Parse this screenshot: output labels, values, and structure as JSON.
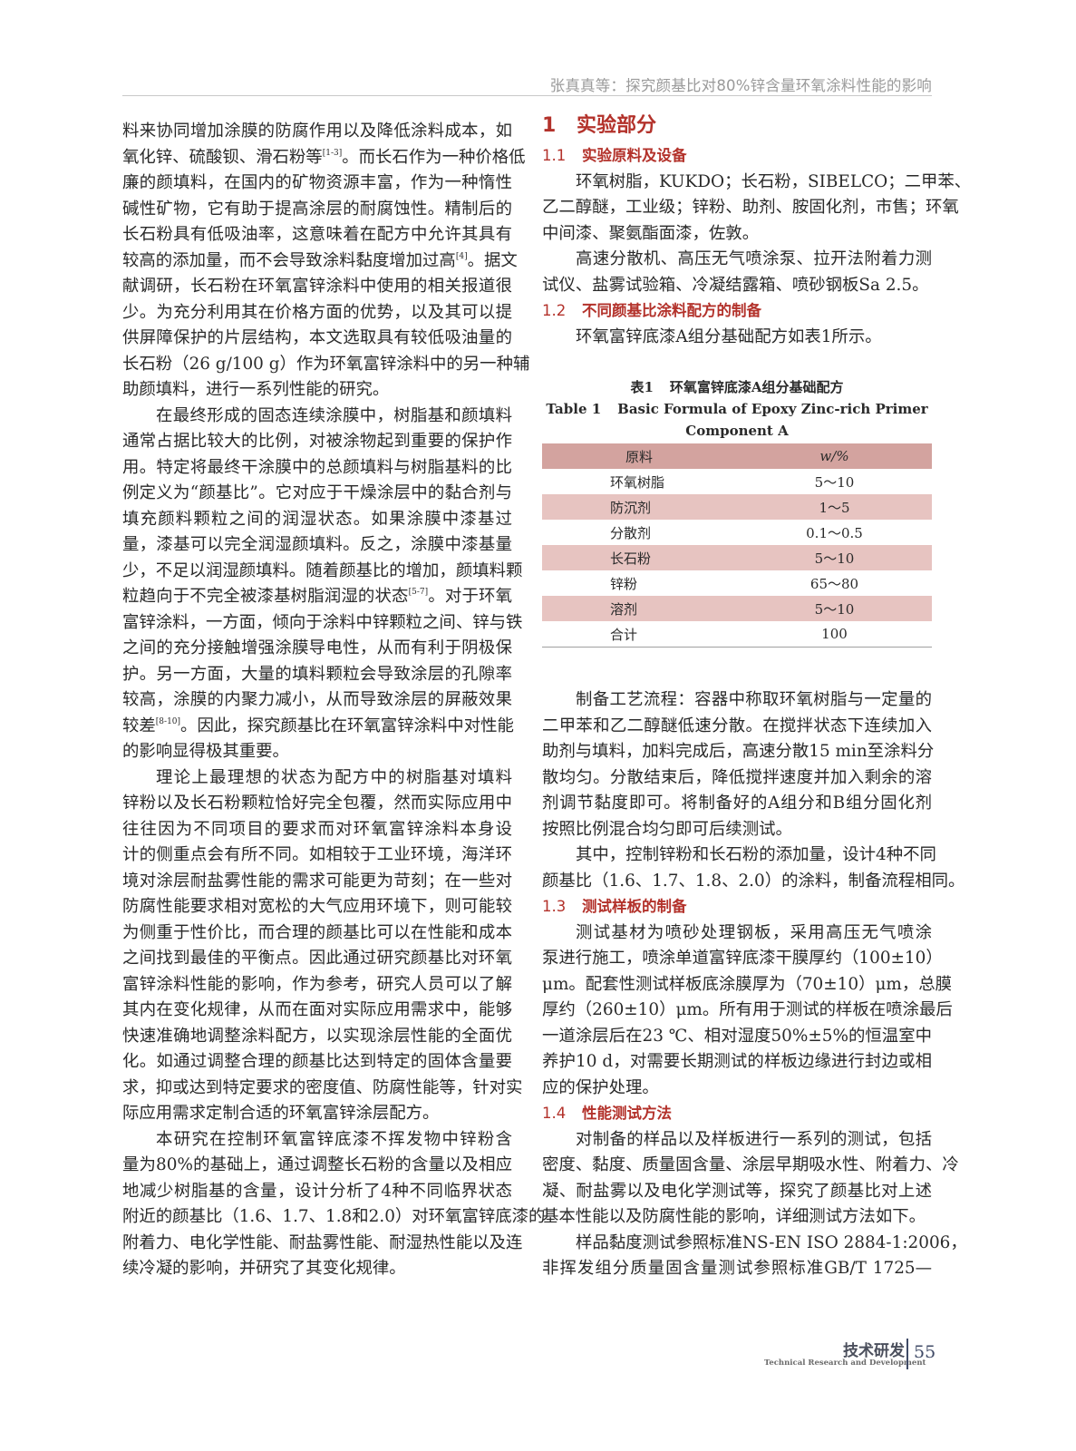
{
  "running_head": "张真真等：探究颜基比对80%锌含量环氧涂料性能的影响",
  "left_column": {
    "paragraphs": [
      {
        "indent": false,
        "lines": [
          [
            "料来协同增加涂膜的防腐作用以及降低涂料成本，如"
          ],
          [
            "氧化锌、硫酸钡、滑石粉等",
            {
              "sup": "[1-3]"
            },
            "。而长石作为一种价格低"
          ],
          [
            "廉的颜填料，在国内的矿物资源丰富，作为一种惰性"
          ],
          [
            "碱性矿物，它有助于提高涂层的耐腐蚀性。精制后的"
          ],
          [
            "长石粉具有低吸油率，这意味着在配方中允许其具有"
          ],
          [
            "较高的添加量，而不会导致涂料黏度增加过高",
            {
              "sup": "[4]"
            },
            "。据文"
          ],
          [
            "献调研，长石粉在环氧富锌涂料中使用的相关报道很"
          ],
          [
            "少。为充分利用其在价格方面的优势，以及其可以提"
          ],
          [
            "供屏障保护的片层结构，本文选取具有较低吸油量的"
          ],
          [
            "长石粉（26 g/100 g）作为环氧富锌涂料中的另一种辅"
          ],
          [
            "助颜填料，进行一系列性能的研究。"
          ]
        ]
      },
      {
        "indent": true,
        "lines": [
          [
            "在最终形成的固态连续涂膜中，树脂基和颜填料"
          ],
          [
            "通常占据比较大的比例，对被涂物起到重要的保护作"
          ],
          [
            "用。特定将最终干涂膜中的总颜填料与树脂基料的比"
          ],
          [
            "例定义为“颜基比”。它对应于干燥涂层中的黏合剂与"
          ],
          [
            "填充颜料颗粒之间的润湿状态。如果涂膜中漆基过"
          ],
          [
            "量，漆基可以完全润湿颜填料。反之，涂膜中漆基量"
          ],
          [
            "少，不足以润湿颜填料。随着颜基比的增加，颜填料颗"
          ],
          [
            "粒趋向于不完全被漆基树脂润湿的状态",
            {
              "sup": "[5-7]"
            },
            "。对于环氧"
          ],
          [
            "富锌涂料，一方面，倾向于涂料中锌颗粒之间、锌与铁"
          ],
          [
            "之间的充分接触增强涂膜导电性，从而有利于阴极保"
          ],
          [
            "护。另一方面，大量的填料颗粒会导致涂层的孔隙率"
          ],
          [
            "较高，涂膜的内聚力减小，从而导致涂层的屏蔽效果"
          ],
          [
            "较差",
            {
              "sup": "[8-10]"
            },
            "。因此，探究颜基比在环氧富锌涂料中对性能"
          ],
          [
            "的影响显得极其重要。"
          ]
        ]
      },
      {
        "indent": true,
        "lines": [
          [
            "理论上最理想的状态为配方中的树脂基对填料"
          ],
          [
            "锌粉以及长石粉颗粒恰好完全包覆，然而实际应用中"
          ],
          [
            "往往因为不同项目的要求而对环氧富锌涂料本身设"
          ],
          [
            "计的侧重点会有所不同。如相较于工业环境，海洋环"
          ],
          [
            "境对涂层耐盐雾性能的需求可能更为苛刻；在一些对"
          ],
          [
            "防腐性能要求相对宽松的大气应用环境下，则可能较"
          ],
          [
            "为侧重于性价比，而合理的颜基比可以在性能和成本"
          ],
          [
            "之间找到最佳的平衡点。因此通过研究颜基比对环氧"
          ],
          [
            "富锌涂料性能的影响，作为参考，研究人员可以了解"
          ],
          [
            "其内在变化规律，从而在面对实际应用需求中，能够"
          ],
          [
            "快速准确地调整涂料配方，以实现涂层性能的全面优"
          ],
          [
            "化。如通过调整合理的颜基比达到特定的固体含量要"
          ],
          [
            "求，抑或达到特定要求的密度值、防腐性能等，针对实"
          ],
          [
            "际应用需求定制合适的环氧富锌涂层配方。"
          ]
        ]
      },
      {
        "indent": true,
        "lines": [
          [
            "本研究在控制环氧富锌底漆不挥发物中锌粉含"
          ],
          [
            "量为80%的基础上，通过调整长石粉的含量以及相应"
          ],
          [
            "地减少树脂基的含量，设计分析了4种不同临界状态"
          ],
          [
            "附近的颜基比（1.6、1.7、1.8和2.0）对环氧富锌底漆的"
          ],
          [
            "附着力、电化学性能、耐盐雾性能、耐湿热性能以及连"
          ],
          [
            "续冷凝的影响，并研究了其变化规律。"
          ]
        ]
      }
    ]
  },
  "right_column": {
    "section_number": "1",
    "section_title": "实验部分",
    "top_blocks": [
      {
        "type": "h2",
        "num": "1.1",
        "title": "实验原料及设备"
      },
      {
        "type": "p",
        "indent": true,
        "lines": [
          [
            "环氧树脂，KUKDO；长石粉，SIBELCO；二甲苯、"
          ],
          [
            "乙二醇醚，工业级；锌粉、助剂、胺固化剂，市售；环氧"
          ],
          [
            "中间漆、聚氨酯面漆，佐敦。"
          ]
        ]
      },
      {
        "type": "p",
        "indent": true,
        "lines": [
          [
            "高速分散机、高压无气喷涂泵、拉开法附着力测"
          ],
          [
            "试仪、盐雾试验箱、冷凝结露箱、喷砂钢板Sa 2.5。"
          ]
        ]
      },
      {
        "type": "h2",
        "num": "1.2",
        "title": "不同颜基比涂料配方的制备"
      },
      {
        "type": "p",
        "indent": true,
        "lines": [
          [
            "环氧富锌底漆A组分基础配方如表1所示。"
          ]
        ]
      }
    ],
    "bottom_blocks": [
      {
        "type": "p",
        "indent": true,
        "lines": [
          [
            "制备工艺流程：容器中称取环氧树脂与一定量的"
          ],
          [
            "二甲苯和乙二醇醚低速分散。在搅拌状态下连续加入"
          ],
          [
            "助剂与填料，加料完成后，高速分散15 min至涂料分"
          ],
          [
            "散均匀。分散结束后，降低搅拌速度并加入剩余的溶"
          ],
          [
            "剂调节黏度即可。将制备好的A组分和B组分固化剂"
          ],
          [
            "按照比例混合均匀即可后续测试。"
          ]
        ]
      },
      {
        "type": "p",
        "indent": true,
        "lines": [
          [
            "其中，控制锌粉和长石粉的添加量，设计4种不同"
          ],
          [
            "颜基比（1.6、1.7、1.8、2.0）的涂料，制备流程相同。"
          ]
        ]
      },
      {
        "type": "h2",
        "num": "1.3",
        "title": "测试样板的制备"
      },
      {
        "type": "p",
        "indent": true,
        "lines": [
          [
            "测试基材为喷砂处理钢板，采用高压无气喷涂"
          ],
          [
            "泵进行施工，喷涂单道富锌底漆干膜厚约（100±10）"
          ],
          [
            "μm。配套性测试样板底涂膜厚为（70±10）μm，总膜"
          ],
          [
            "厚约（260±10）μm。所有用于测试的样板在喷涂最后"
          ],
          [
            "一道涂层后在23 ℃、相对湿度50%±5%的恒温室中"
          ],
          [
            "养护10 d，对需要长期测试的样板边缘进行封边或相"
          ],
          [
            "应的保护处理。"
          ]
        ]
      },
      {
        "type": "h2",
        "num": "1.4",
        "title": "性能测试方法"
      },
      {
        "type": "p",
        "indent": true,
        "lines": [
          [
            "对制备的样品以及样板进行一系列的测试，包括"
          ],
          [
            "密度、黏度、质量固含量、涂层早期吸水性、附着力、冷"
          ],
          [
            "凝、耐盐雾以及电化学测试等，探究了颜基比对上述"
          ],
          [
            "基本性能以及防腐性能的影响，详细测试方法如下。"
          ]
        ]
      },
      {
        "type": "p",
        "indent": true,
        "continues": true,
        "lines": [
          [
            "样品黏度测试参照标准NS-EN ISO 2884-1:2006，"
          ],
          [
            "非挥发组分质量固含量测试参照标准GB/T 1725—"
          ]
        ]
      }
    ]
  },
  "table1": {
    "caption_cn_label": "表1",
    "caption_cn": "环氧富锌底漆A组分基础配方",
    "caption_en_label": "Table 1",
    "caption_en_line1": "Basic Formula of Epoxy Zinc-rich Primer",
    "caption_en_line2": "Component A",
    "headers": [
      "原料",
      "w/%"
    ],
    "rows": [
      [
        "环氧树脂",
        "5～10"
      ],
      [
        "防沉剂",
        "1～5"
      ],
      [
        "分散剂",
        "0.1～0.5"
      ],
      [
        "长石粉",
        "5～10"
      ],
      [
        "锌粉",
        "65～80"
      ],
      [
        "溶剂",
        "5～10"
      ],
      [
        "合计",
        "100"
      ]
    ],
    "colors": {
      "header": "#d3a39f",
      "shaded_row": "#e7c4c1"
    }
  },
  "footer": {
    "column_cn": "技术研发",
    "column_en": "Technical Research and Development",
    "page_number": "55"
  },
  "colors": {
    "heading": "#b3322b",
    "body_text": "#2a2a2a",
    "running_head": "#9a9a9a"
  }
}
